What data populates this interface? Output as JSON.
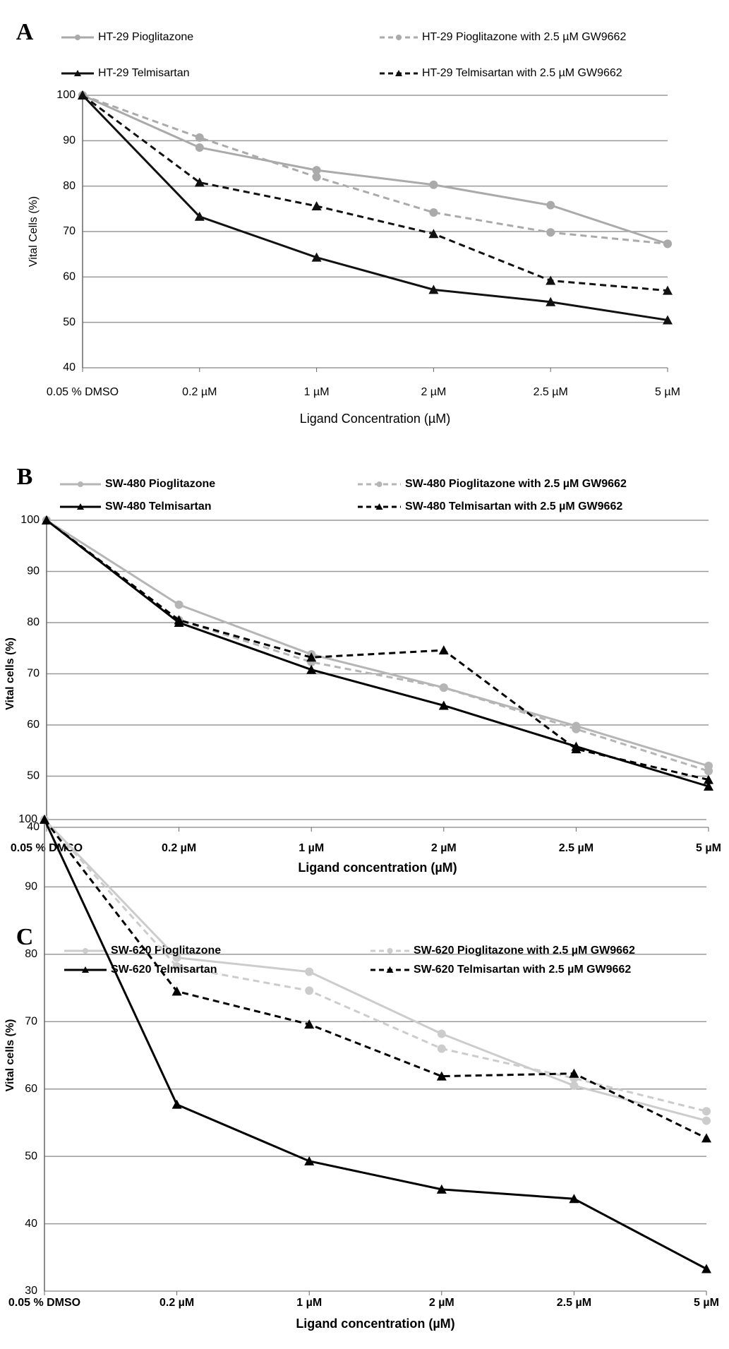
{
  "chart_data": [
    {
      "type": "line",
      "title": "A",
      "xlabel": "Ligand Concentration (µM)",
      "ylabel": "Vital Cells (%)",
      "categories": [
        "0.05 % DMSO",
        "0.2 µM",
        "1 µM",
        "2 µM",
        "2.5 µM",
        "5 µM"
      ],
      "ylim": [
        40,
        100
      ],
      "yticks": [
        40,
        50,
        60,
        70,
        80,
        90,
        100
      ],
      "grid": true,
      "series": [
        {
          "name": "HT-29 Pioglitazone",
          "color": "#aaaaaa",
          "dashed": false,
          "marker": "circle",
          "values": [
            100,
            88.5,
            83.5,
            80.3,
            75.8,
            67.3
          ]
        },
        {
          "name": "HT-29 Pioglitazone with 2.5 µM GW9662",
          "color": "#aaaaaa",
          "dashed": true,
          "marker": "circle",
          "values": [
            100,
            90.7,
            82,
            74.2,
            69.8,
            67.3
          ]
        },
        {
          "name": "HT-29 Telmisartan",
          "color": "#111111",
          "dashed": false,
          "marker": "triangle",
          "values": [
            100,
            73.3,
            64.3,
            57.2,
            54.5,
            50.5
          ]
        },
        {
          "name": "HT-29 Telmisartan with 2.5 µM GW9662",
          "color": "#111111",
          "dashed": true,
          "marker": "triangle",
          "values": [
            100,
            80.8,
            75.6,
            69.5,
            59.2,
            57
          ]
        }
      ]
    },
    {
      "type": "line",
      "title": "B",
      "xlabel": "Ligand concentration (µM)",
      "ylabel": "Vital cells (%)",
      "categories": [
        "0.05 % DMSO",
        "0.2 µM",
        "1 µM",
        "2 µM",
        "2.5 µM",
        "5 µM"
      ],
      "ylim": [
        40,
        100
      ],
      "yticks": [
        40,
        50,
        60,
        70,
        80,
        90,
        100
      ],
      "grid": true,
      "series": [
        {
          "name": "SW-480 Pioglitazone",
          "color": "#b5b5b5",
          "dashed": false,
          "marker": "circle",
          "values": [
            100,
            83.5,
            73.8,
            67.3,
            59.8,
            52
          ]
        },
        {
          "name": "SW-480 Pioglitazone with 2.5 µM GW9662",
          "color": "#b5b5b5",
          "dashed": true,
          "marker": "circle",
          "values": [
            100,
            80.5,
            72.3,
            67.3,
            59.2,
            51
          ]
        },
        {
          "name": "SW-480 Telmisartan",
          "color": "#000000",
          "dashed": false,
          "marker": "triangle",
          "values": [
            100,
            80,
            70.8,
            63.8,
            55.8,
            48
          ]
        },
        {
          "name": "SW-480 Telmisartan with 2.5 µM GW9662",
          "color": "#000000",
          "dashed": true,
          "marker": "triangle",
          "values": [
            100,
            80.5,
            73.2,
            74.6,
            55.3,
            49.3
          ]
        }
      ]
    },
    {
      "type": "line",
      "title": "C",
      "xlabel": "Ligand concentration (µM)",
      "ylabel": "Vital cells (%)",
      "categories": [
        "0.05 % DMSO",
        "0.2 µM",
        "1 µM",
        "2 µM",
        "2.5 µM",
        "5 µM"
      ],
      "ylim": [
        30,
        100
      ],
      "yticks": [
        30,
        40,
        50,
        60,
        70,
        80,
        90,
        100
      ],
      "grid": true,
      "series": [
        {
          "name": "SW-620 Pioglitazone",
          "color": "#cccccc",
          "dashed": false,
          "marker": "circle",
          "values": [
            100,
            79.5,
            77.4,
            68.2,
            60.5,
            55.3
          ]
        },
        {
          "name": "SW-620 Pioglitazone with 2.5 µM GW9662",
          "color": "#cccccc",
          "dashed": true,
          "marker": "circle",
          "values": [
            100,
            78.2,
            74.6,
            66,
            61.6,
            56.7
          ]
        },
        {
          "name": "SW-620 Telmisartan",
          "color": "#000000",
          "dashed": false,
          "marker": "triangle",
          "values": [
            100,
            57.7,
            49.3,
            45.1,
            43.7,
            33.3
          ]
        },
        {
          "name": "SW-620 Telmisartan with 2.5 µM GW9662",
          "color": "#000000",
          "dashed": true,
          "marker": "triangle",
          "values": [
            100,
            74.5,
            69.6,
            61.9,
            62.3,
            52.7
          ]
        }
      ]
    }
  ]
}
